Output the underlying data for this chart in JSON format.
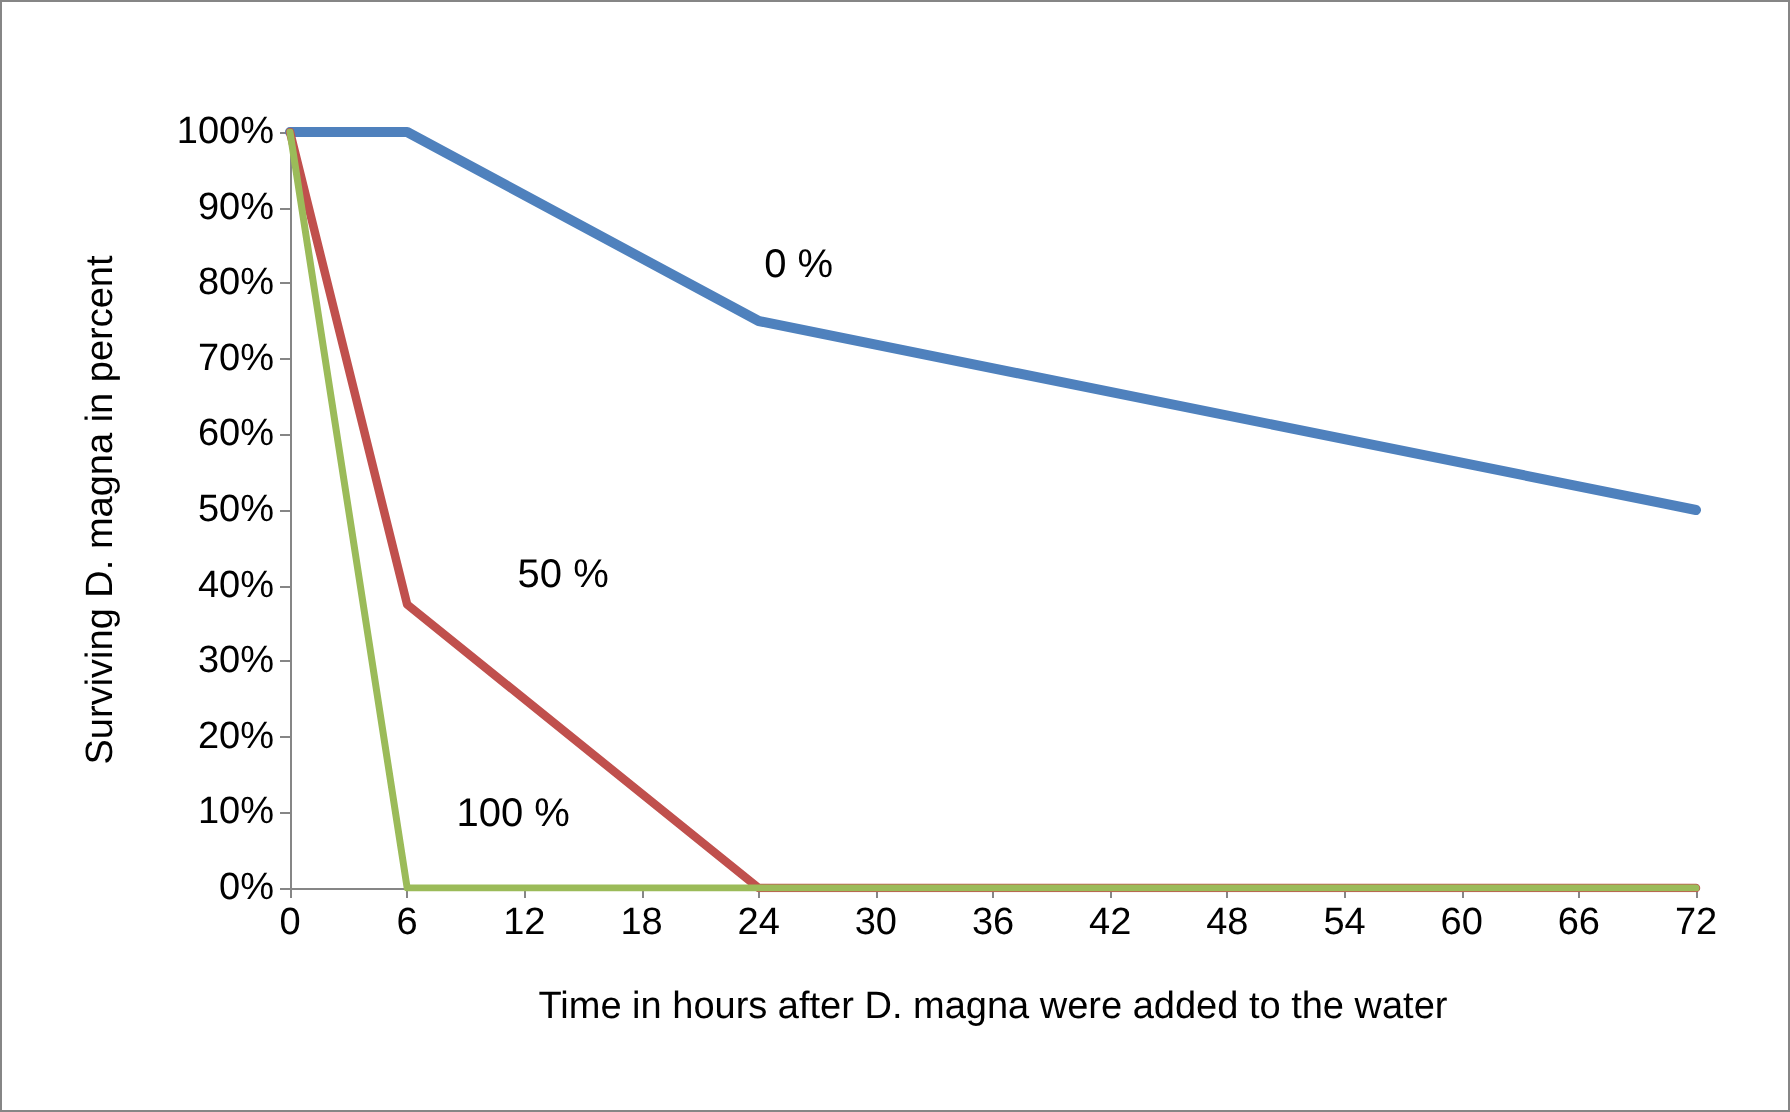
{
  "chart_data": {
    "type": "line",
    "xlabel": "Time in hours after D. magna were added to the water",
    "ylabel": "Surviving D. magna in percent",
    "xlim": [
      0,
      72
    ],
    "xticks": [
      0,
      6,
      12,
      18,
      24,
      30,
      36,
      42,
      48,
      54,
      60,
      66,
      72
    ],
    "ylim": [
      0,
      100
    ],
    "yticks": [
      {
        "value": 0,
        "label": "0%"
      },
      {
        "value": 10,
        "label": "10%"
      },
      {
        "value": 20,
        "label": "20%"
      },
      {
        "value": 30,
        "label": "30%"
      },
      {
        "value": 40,
        "label": "40%"
      },
      {
        "value": 50,
        "label": "50%"
      },
      {
        "value": 60,
        "label": "60%"
      },
      {
        "value": 70,
        "label": "70%"
      },
      {
        "value": 80,
        "label": "80%"
      },
      {
        "value": 90,
        "label": "90%"
      },
      {
        "value": 100,
        "label": "100%"
      }
    ],
    "series": [
      {
        "name": "0 %",
        "color": "#4f81bd",
        "x": [
          0,
          6,
          24,
          72
        ],
        "values": [
          100,
          100,
          75,
          50
        ]
      },
      {
        "name": "50 %",
        "color": "#c0504d",
        "x": [
          0,
          6,
          24,
          72
        ],
        "values": [
          100,
          37.5,
          0,
          0
        ]
      },
      {
        "name": "100 %",
        "color": "#9bbb59",
        "x": [
          0,
          6,
          72
        ],
        "values": [
          100,
          0,
          0
        ]
      }
    ],
    "grid": false,
    "legend": false,
    "marker": "none",
    "line_style": "solid"
  }
}
